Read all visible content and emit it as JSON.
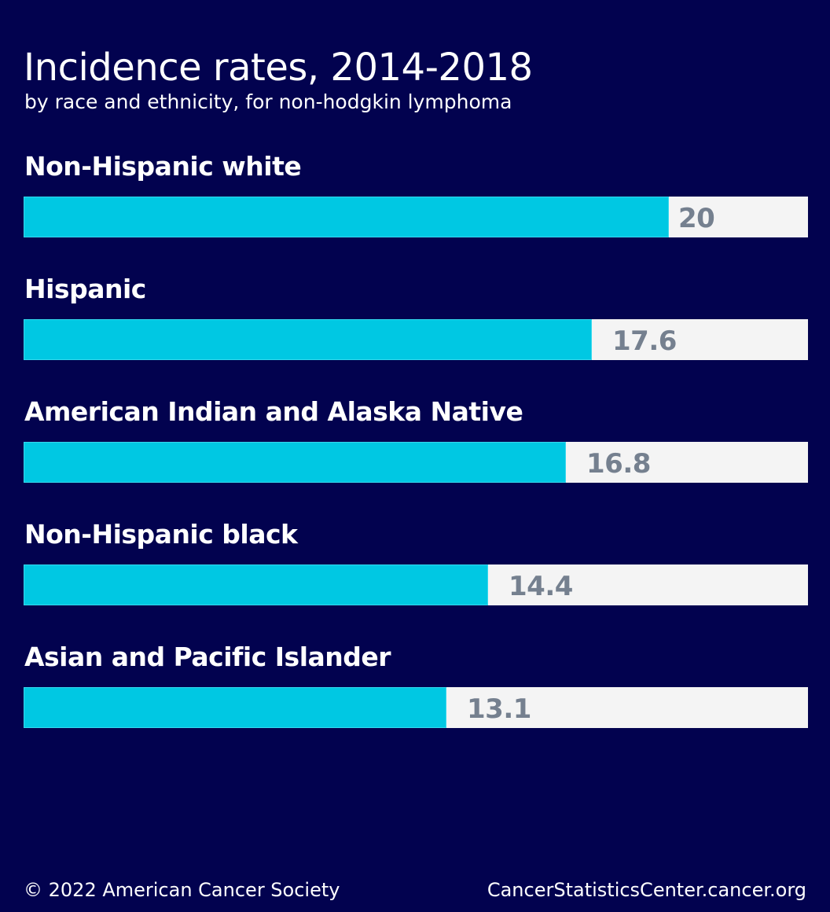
{
  "chart_data": {
    "type": "bar",
    "orientation": "horizontal",
    "title": "Incidence rates, 2014-2018",
    "subtitle": "by race and ethnicity, for non-hodgkin lymphoma",
    "categories": [
      "Non-Hispanic white",
      "Hispanic",
      "American Indian and Alaska Native",
      "Non-Hispanic black",
      "Asian and Pacific Islander"
    ],
    "values": [
      20,
      17.6,
      16.8,
      14.4,
      13.1
    ],
    "value_labels": [
      "20",
      "17.6",
      "16.8",
      "14.4",
      "13.1"
    ],
    "xlim": [
      0,
      24.3
    ],
    "grid": false,
    "legend": "none"
  },
  "footer": {
    "copyright": "© 2022 American Cancer Society",
    "site": "CancerStatisticsCenter.cancer.org"
  },
  "colors": {
    "background": "#02024f",
    "bar": "#00c8e3",
    "track": "#f4f4f4",
    "value_text": "#75808f",
    "text": "#ffffff"
  }
}
